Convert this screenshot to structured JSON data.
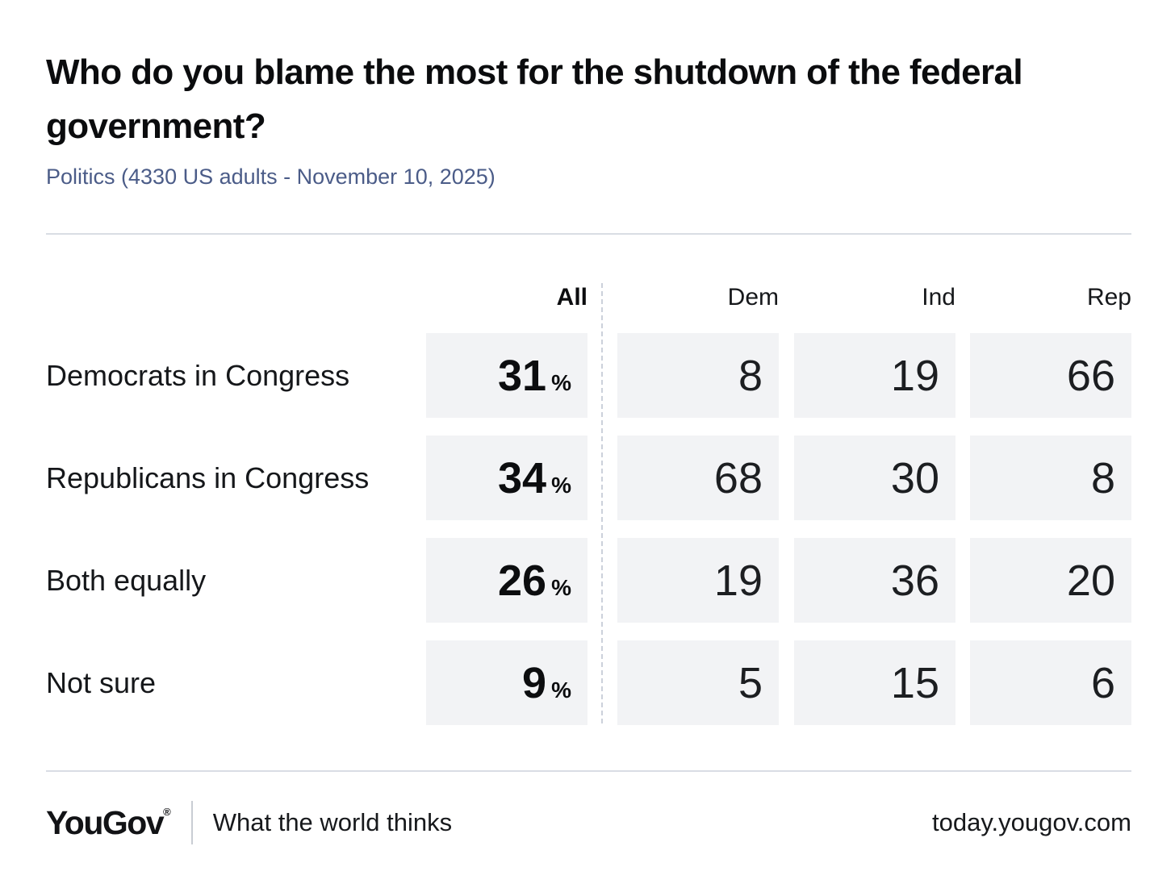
{
  "header": {
    "title": "Who do you blame the most for the shutdown of the federal government?",
    "subtitle": "Politics (4330 US adults - November 10, 2025)"
  },
  "table": {
    "columns": [
      "All",
      "Dem",
      "Ind",
      "Rep"
    ],
    "all_unit": "%",
    "rows": [
      {
        "label": "Democrats in Congress",
        "all": 31,
        "dem": 8,
        "ind": 19,
        "rep": 66
      },
      {
        "label": "Republicans in Congress",
        "all": 34,
        "dem": 68,
        "ind": 30,
        "rep": 8
      },
      {
        "label": "Both equally",
        "all": 26,
        "dem": 19,
        "ind": 36,
        "rep": 20
      },
      {
        "label": "Not sure",
        "all": 9,
        "dem": 5,
        "ind": 15,
        "rep": 6
      }
    ]
  },
  "chart_data": {
    "type": "table",
    "title": "Who do you blame the most for the shutdown of the federal government?",
    "subtitle": "Politics (4330 US adults - November 10, 2025)",
    "categories": [
      "Democrats in Congress",
      "Republicans in Congress",
      "Both equally",
      "Not sure"
    ],
    "series": [
      {
        "name": "All",
        "unit": "%",
        "values": [
          31,
          34,
          26,
          9
        ]
      },
      {
        "name": "Dem",
        "values": [
          8,
          68,
          19,
          5
        ]
      },
      {
        "name": "Ind",
        "values": [
          19,
          30,
          36,
          15
        ]
      },
      {
        "name": "Rep",
        "values": [
          66,
          8,
          20,
          6
        ]
      }
    ],
    "layout": "poll result matrix; All column separated from party breakdown by vertical dashed line"
  },
  "footer": {
    "logo": "YouGov",
    "registered": "®",
    "tagline": "What the world thinks",
    "url": "today.yougov.com"
  },
  "colors": {
    "title_text": "#0b0c0e",
    "body_text": "#17191c",
    "subtitle_blue": "#4b5c88",
    "cell_background": "#f2f3f5",
    "rule_gray": "#d9dde4",
    "dashed_separator": "#ccd1db",
    "background": "#ffffff"
  }
}
